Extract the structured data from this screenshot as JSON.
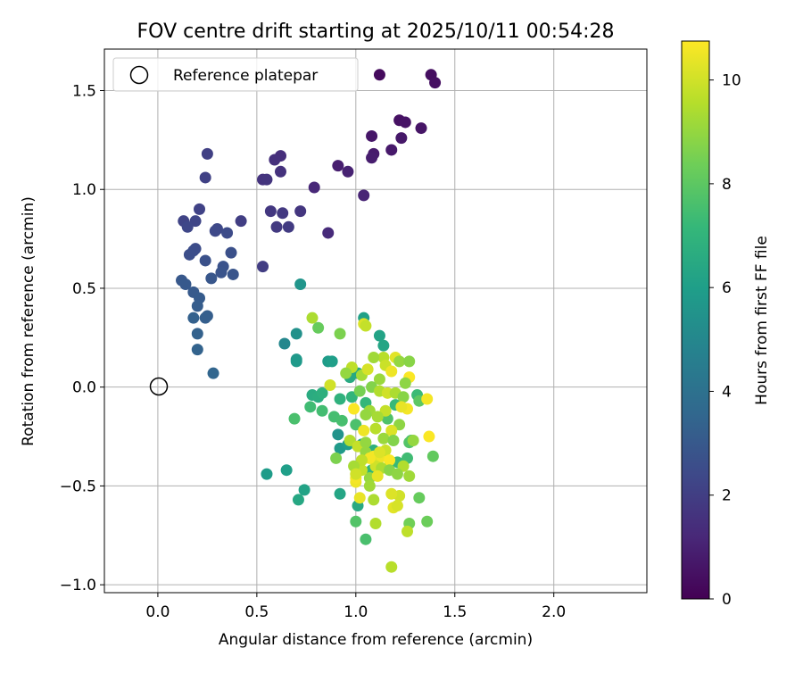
{
  "chart_data": {
    "type": "scatter",
    "title": "FOV centre drift starting at 2025/10/11 00:54:28",
    "xlabel": "Angular distance from reference (arcmin)",
    "ylabel": "Rotation from reference (arcmin)",
    "xlim": [
      -0.27,
      2.47
    ],
    "ylim": [
      -1.04,
      1.71
    ],
    "xticks": [
      0.0,
      0.5,
      1.0,
      1.5,
      2.0
    ],
    "xtick_labels": [
      "0.0",
      "0.5",
      "1.0",
      "1.5",
      "2.0"
    ],
    "yticks": [
      -1.0,
      -0.5,
      0.0,
      0.5,
      1.0,
      1.5
    ],
    "ytick_labels": [
      "−1.0",
      "−0.5",
      "0.0",
      "0.5",
      "1.0",
      "1.5"
    ],
    "grid": true,
    "legend": {
      "location": "upper-left",
      "entries": [
        "Reference platepar"
      ]
    },
    "reference_point": {
      "x": 0.0,
      "y": 0.0,
      "label": "Reference platepar"
    },
    "colorbar": {
      "label": "Hours from first FF file",
      "range": [
        0,
        10.75
      ],
      "ticks": [
        0,
        2,
        4,
        6,
        8,
        10
      ],
      "tick_labels": [
        "0",
        "2",
        "4",
        "6",
        "8",
        "10"
      ],
      "colormap": "viridis"
    },
    "colormap_stops": [
      "#440154",
      "#482878",
      "#3e4989",
      "#31688e",
      "#26828e",
      "#1f9e89",
      "#35b779",
      "#6ece58",
      "#b5de2b",
      "#fde725"
    ],
    "series": [
      {
        "name": "FOV centre drift",
        "points": [
          [
            1.12,
            1.58,
            0.3
          ],
          [
            1.38,
            1.58,
            0.4
          ],
          [
            1.4,
            1.54,
            0.45
          ],
          [
            1.22,
            1.35,
            0.5
          ],
          [
            1.25,
            1.34,
            0.55
          ],
          [
            1.33,
            1.31,
            0.6
          ],
          [
            1.08,
            1.27,
            0.65
          ],
          [
            1.23,
            1.26,
            0.7
          ],
          [
            1.18,
            1.2,
            0.75
          ],
          [
            1.09,
            1.18,
            0.8
          ],
          [
            1.08,
            1.16,
            0.85
          ],
          [
            0.91,
            1.12,
            0.9
          ],
          [
            0.96,
            1.09,
            1.0
          ],
          [
            1.04,
            0.97,
            1.1
          ],
          [
            0.79,
            1.01,
            1.2
          ],
          [
            0.86,
            0.78,
            1.3
          ],
          [
            0.62,
            1.17,
            1.4
          ],
          [
            0.59,
            1.15,
            1.5
          ],
          [
            0.62,
            1.09,
            1.55
          ],
          [
            0.53,
            1.05,
            1.6
          ],
          [
            0.55,
            1.05,
            1.65
          ],
          [
            0.72,
            0.89,
            1.7
          ],
          [
            0.57,
            0.89,
            1.75
          ],
          [
            0.63,
            0.88,
            1.8
          ],
          [
            0.6,
            0.81,
            1.85
          ],
          [
            0.66,
            0.81,
            1.9
          ],
          [
            0.53,
            0.61,
            1.95
          ],
          [
            0.42,
            0.84,
            2.0
          ],
          [
            0.25,
            1.18,
            2.05
          ],
          [
            0.24,
            1.06,
            2.1
          ],
          [
            0.21,
            0.9,
            2.15
          ],
          [
            0.13,
            0.84,
            2.2
          ],
          [
            0.19,
            0.84,
            2.25
          ],
          [
            0.15,
            0.81,
            2.3
          ],
          [
            0.3,
            0.8,
            2.35
          ],
          [
            0.29,
            0.79,
            2.4
          ],
          [
            0.35,
            0.78,
            2.45
          ],
          [
            0.19,
            0.7,
            2.5
          ],
          [
            0.18,
            0.69,
            2.55
          ],
          [
            0.16,
            0.67,
            2.6
          ],
          [
            0.37,
            0.68,
            2.65
          ],
          [
            0.24,
            0.64,
            2.7
          ],
          [
            0.33,
            0.61,
            2.75
          ],
          [
            0.32,
            0.58,
            2.8
          ],
          [
            0.38,
            0.57,
            2.85
          ],
          [
            0.27,
            0.55,
            2.9
          ],
          [
            0.12,
            0.54,
            2.95
          ],
          [
            0.14,
            0.52,
            3.0
          ],
          [
            0.18,
            0.48,
            3.05
          ],
          [
            0.21,
            0.45,
            3.1
          ],
          [
            0.2,
            0.41,
            3.15
          ],
          [
            0.25,
            0.36,
            3.2
          ],
          [
            0.24,
            0.35,
            3.25
          ],
          [
            0.18,
            0.35,
            3.3
          ],
          [
            0.2,
            0.27,
            3.35
          ],
          [
            0.2,
            0.19,
            3.4
          ],
          [
            0.28,
            0.07,
            3.5
          ],
          [
            0.72,
            0.52,
            5.6
          ],
          [
            0.64,
            0.22,
            5.0
          ],
          [
            0.7,
            0.27,
            5.4
          ],
          [
            0.7,
            0.14,
            5.7
          ],
          [
            0.7,
            0.13,
            5.8
          ],
          [
            0.86,
            0.13,
            5.9
          ],
          [
            0.88,
            0.13,
            6.0
          ],
          [
            1.04,
            0.35,
            6.1
          ],
          [
            1.12,
            0.26,
            6.2
          ],
          [
            1.14,
            0.21,
            6.3
          ],
          [
            1.01,
            0.07,
            6.4
          ],
          [
            0.97,
            0.05,
            6.5
          ],
          [
            0.78,
            -0.04,
            6.6
          ],
          [
            0.81,
            -0.05,
            6.7
          ],
          [
            0.83,
            -0.03,
            6.8
          ],
          [
            0.92,
            -0.06,
            6.9
          ],
          [
            0.98,
            -0.05,
            7.0
          ],
          [
            1.05,
            -0.08,
            7.1
          ],
          [
            1.2,
            -0.09,
            7.2
          ],
          [
            1.31,
            -0.04,
            7.3
          ],
          [
            0.77,
            -0.1,
            7.4
          ],
          [
            0.83,
            -0.12,
            7.45
          ],
          [
            0.89,
            -0.15,
            7.5
          ],
          [
            0.93,
            -0.17,
            7.55
          ],
          [
            0.69,
            -0.16,
            7.6
          ],
          [
            1.0,
            -0.19,
            7.65
          ],
          [
            1.16,
            -0.16,
            7.7
          ],
          [
            0.91,
            -0.24,
            5.5
          ],
          [
            0.92,
            -0.31,
            5.8
          ],
          [
            0.96,
            -0.29,
            6.0
          ],
          [
            1.03,
            -0.29,
            6.2
          ],
          [
            1.06,
            -0.34,
            6.5
          ],
          [
            1.09,
            -0.32,
            6.8
          ],
          [
            1.08,
            -0.42,
            7.0
          ],
          [
            1.21,
            -0.38,
            7.2
          ],
          [
            1.26,
            -0.36,
            7.4
          ],
          [
            1.28,
            -0.27,
            7.6
          ],
          [
            1.27,
            -0.28,
            7.8
          ],
          [
            1.32,
            -0.07,
            8.0
          ],
          [
            1.39,
            -0.35,
            8.1
          ],
          [
            1.32,
            -0.56,
            8.2
          ],
          [
            1.36,
            -0.68,
            8.3
          ],
          [
            1.27,
            -0.69,
            8.4
          ],
          [
            0.92,
            -0.54,
            6.3
          ],
          [
            0.55,
            -0.44,
            5.9
          ],
          [
            0.65,
            -0.42,
            6.0
          ],
          [
            0.74,
            -0.52,
            6.2
          ],
          [
            0.71,
            -0.57,
            6.4
          ],
          [
            1.01,
            -0.6,
            6.5
          ],
          [
            1.05,
            -0.77,
            7.6
          ],
          [
            1.0,
            -0.68,
            7.8
          ],
          [
            1.1,
            -0.69,
            9.5
          ],
          [
            1.18,
            -0.91,
            9.6
          ],
          [
            1.26,
            -0.73,
            9.7
          ],
          [
            1.22,
            -0.55,
            10.0
          ],
          [
            1.18,
            -0.54,
            10.2
          ],
          [
            1.19,
            -0.61,
            10.3
          ],
          [
            1.21,
            -0.6,
            10.1
          ],
          [
            1.07,
            -0.46,
            9.0
          ],
          [
            1.07,
            -0.5,
            9.2
          ],
          [
            1.09,
            -0.57,
            9.4
          ],
          [
            1.02,
            -0.56,
            10.4
          ],
          [
            1.0,
            -0.48,
            10.5
          ],
          [
            1.0,
            -0.46,
            10.6
          ],
          [
            1.03,
            -0.42,
            9.8
          ],
          [
            0.78,
            0.35,
            9.4
          ],
          [
            0.81,
            0.3,
            8.2
          ],
          [
            0.92,
            0.27,
            8.6
          ],
          [
            1.04,
            0.32,
            10.2
          ],
          [
            1.05,
            0.31,
            9.8
          ],
          [
            1.2,
            0.15,
            10.3
          ],
          [
            1.22,
            0.13,
            9.0
          ],
          [
            1.27,
            0.13,
            8.8
          ],
          [
            1.14,
            0.15,
            9.6
          ],
          [
            1.09,
            0.15,
            9.2
          ],
          [
            1.15,
            0.11,
            9.9
          ],
          [
            1.18,
            0.08,
            10.5
          ],
          [
            1.12,
            0.04,
            9.1
          ],
          [
            1.03,
            0.06,
            9.3
          ],
          [
            1.06,
            0.09,
            10.1
          ],
          [
            0.98,
            0.1,
            9.7
          ],
          [
            0.95,
            0.07,
            9.0
          ],
          [
            1.27,
            0.05,
            10.7
          ],
          [
            1.25,
            0.02,
            8.9
          ],
          [
            1.02,
            -0.02,
            8.5
          ],
          [
            1.08,
            0.0,
            8.7
          ],
          [
            1.12,
            -0.02,
            9.5
          ],
          [
            1.16,
            -0.03,
            10.0
          ],
          [
            1.2,
            -0.03,
            9.4
          ],
          [
            1.24,
            -0.05,
            8.8
          ],
          [
            0.87,
            0.01,
            10.0
          ],
          [
            1.36,
            -0.06,
            10.6
          ],
          [
            1.26,
            -0.11,
            10.6
          ],
          [
            1.23,
            -0.1,
            10.4
          ],
          [
            1.15,
            -0.12,
            9.8
          ],
          [
            1.07,
            -0.12,
            9.2
          ],
          [
            0.99,
            -0.11,
            10.7
          ],
          [
            1.05,
            -0.14,
            9.0
          ],
          [
            1.11,
            -0.15,
            9.3
          ],
          [
            1.22,
            -0.19,
            8.9
          ],
          [
            1.18,
            -0.22,
            10.2
          ],
          [
            1.1,
            -0.21,
            9.6
          ],
          [
            1.04,
            -0.22,
            10.5
          ],
          [
            1.14,
            -0.26,
            9.1
          ],
          [
            1.19,
            -0.27,
            8.7
          ],
          [
            1.29,
            -0.27,
            9.0
          ],
          [
            1.37,
            -0.25,
            10.7
          ],
          [
            0.97,
            -0.27,
            9.5
          ],
          [
            1.01,
            -0.3,
            9.8
          ],
          [
            1.05,
            -0.33,
            9.0
          ],
          [
            1.09,
            -0.35,
            10.6
          ],
          [
            1.11,
            -0.38,
            10.3
          ],
          [
            1.13,
            -0.35,
            10.5
          ],
          [
            1.15,
            -0.32,
            9.9
          ],
          [
            1.17,
            -0.37,
            10.7
          ],
          [
            1.1,
            -0.4,
            10.0
          ],
          [
            1.13,
            -0.41,
            9.4
          ],
          [
            1.17,
            -0.42,
            8.8
          ],
          [
            1.07,
            -0.36,
            10.6
          ],
          [
            1.03,
            -0.37,
            9.7
          ],
          [
            0.99,
            -0.4,
            9.3
          ],
          [
            0.9,
            -0.36,
            8.6
          ],
          [
            1.24,
            -0.4,
            9.5
          ],
          [
            1.21,
            -0.44,
            8.9
          ],
          [
            1.27,
            -0.45,
            9.2
          ],
          [
            1.11,
            -0.45,
            10.4
          ],
          [
            1.05,
            -0.28,
            9.0
          ],
          [
            1.12,
            -0.33,
            10.2
          ],
          [
            1.0,
            -0.44,
            10.0
          ]
        ]
      }
    ]
  }
}
